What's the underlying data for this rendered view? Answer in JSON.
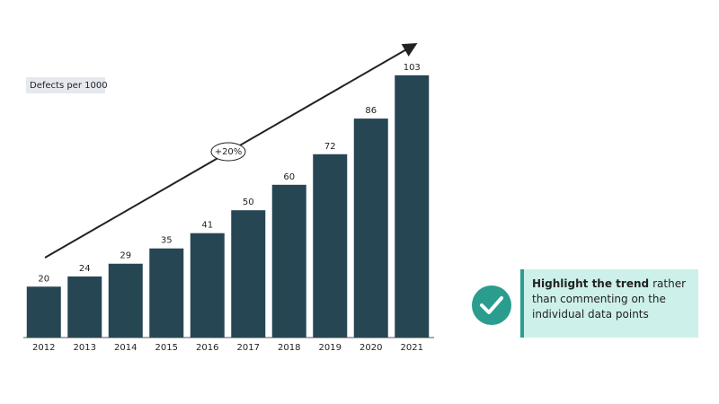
{
  "chart_data": {
    "type": "bar",
    "ylabel": "Defects per 1000",
    "annotation": "+20%",
    "categories": [
      "2012",
      "2013",
      "2014",
      "2015",
      "2016",
      "2017",
      "2018",
      "2019",
      "2020",
      "2021"
    ],
    "values": [
      20,
      24,
      29,
      35,
      41,
      50,
      60,
      72,
      86,
      103
    ],
    "color": "#264653",
    "ylim": [
      0,
      110
    ]
  },
  "callout": {
    "bold": "Highlight the trend",
    "text": "rather than commenting on the individual data points"
  }
}
